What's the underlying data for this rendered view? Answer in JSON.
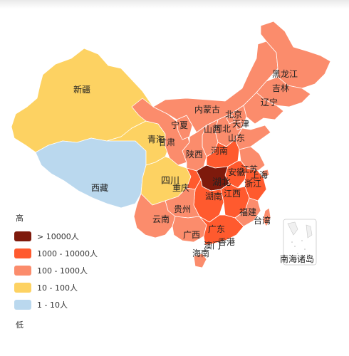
{
  "legend": {
    "high": "高",
    "low": "低",
    "items": [
      {
        "label": "> 10000人",
        "color": "#7e1a0c"
      },
      {
        "label": "1000 - 10000人",
        "color": "#ff5a2e"
      },
      {
        "label": "100 - 1000人",
        "color": "#fb8c6c"
      },
      {
        "label": "10 - 100人",
        "color": "#fdd262"
      },
      {
        "label": "1 - 10人",
        "color": "#bad8ee"
      }
    ]
  },
  "provinces": {
    "xinjiang": "新疆",
    "xizang": "西藏",
    "qinghai": "青海",
    "gansu": "甘肃",
    "ningxia": "宁夏",
    "neimenggu": "内蒙古",
    "heilongjiang": "黑龙江",
    "jilin": "吉林",
    "liaoning": "辽宁",
    "beijing": "北京",
    "tianjin": "天津",
    "hebei": "河北",
    "shanxi": "山西",
    "shandong": "山东",
    "shaanxi": "陕西",
    "henan": "河南",
    "jiangsu": "江苏",
    "anhui": "安徽",
    "shanghai": "上海",
    "sichuan": "四川",
    "chongqing": "重庆",
    "hubei": "湖北",
    "zhejiang": "浙江",
    "hunan": "湖南",
    "jiangxi": "江西",
    "guizhou": "贵州",
    "yunnan": "云南",
    "fujian": "福建",
    "taiwan": "台湾",
    "guangxi": "广西",
    "guangdong": "广东",
    "xianggang": "香港",
    "aomen": "澳门",
    "hainan": "海南",
    "nanhai": "南海诸岛"
  }
}
